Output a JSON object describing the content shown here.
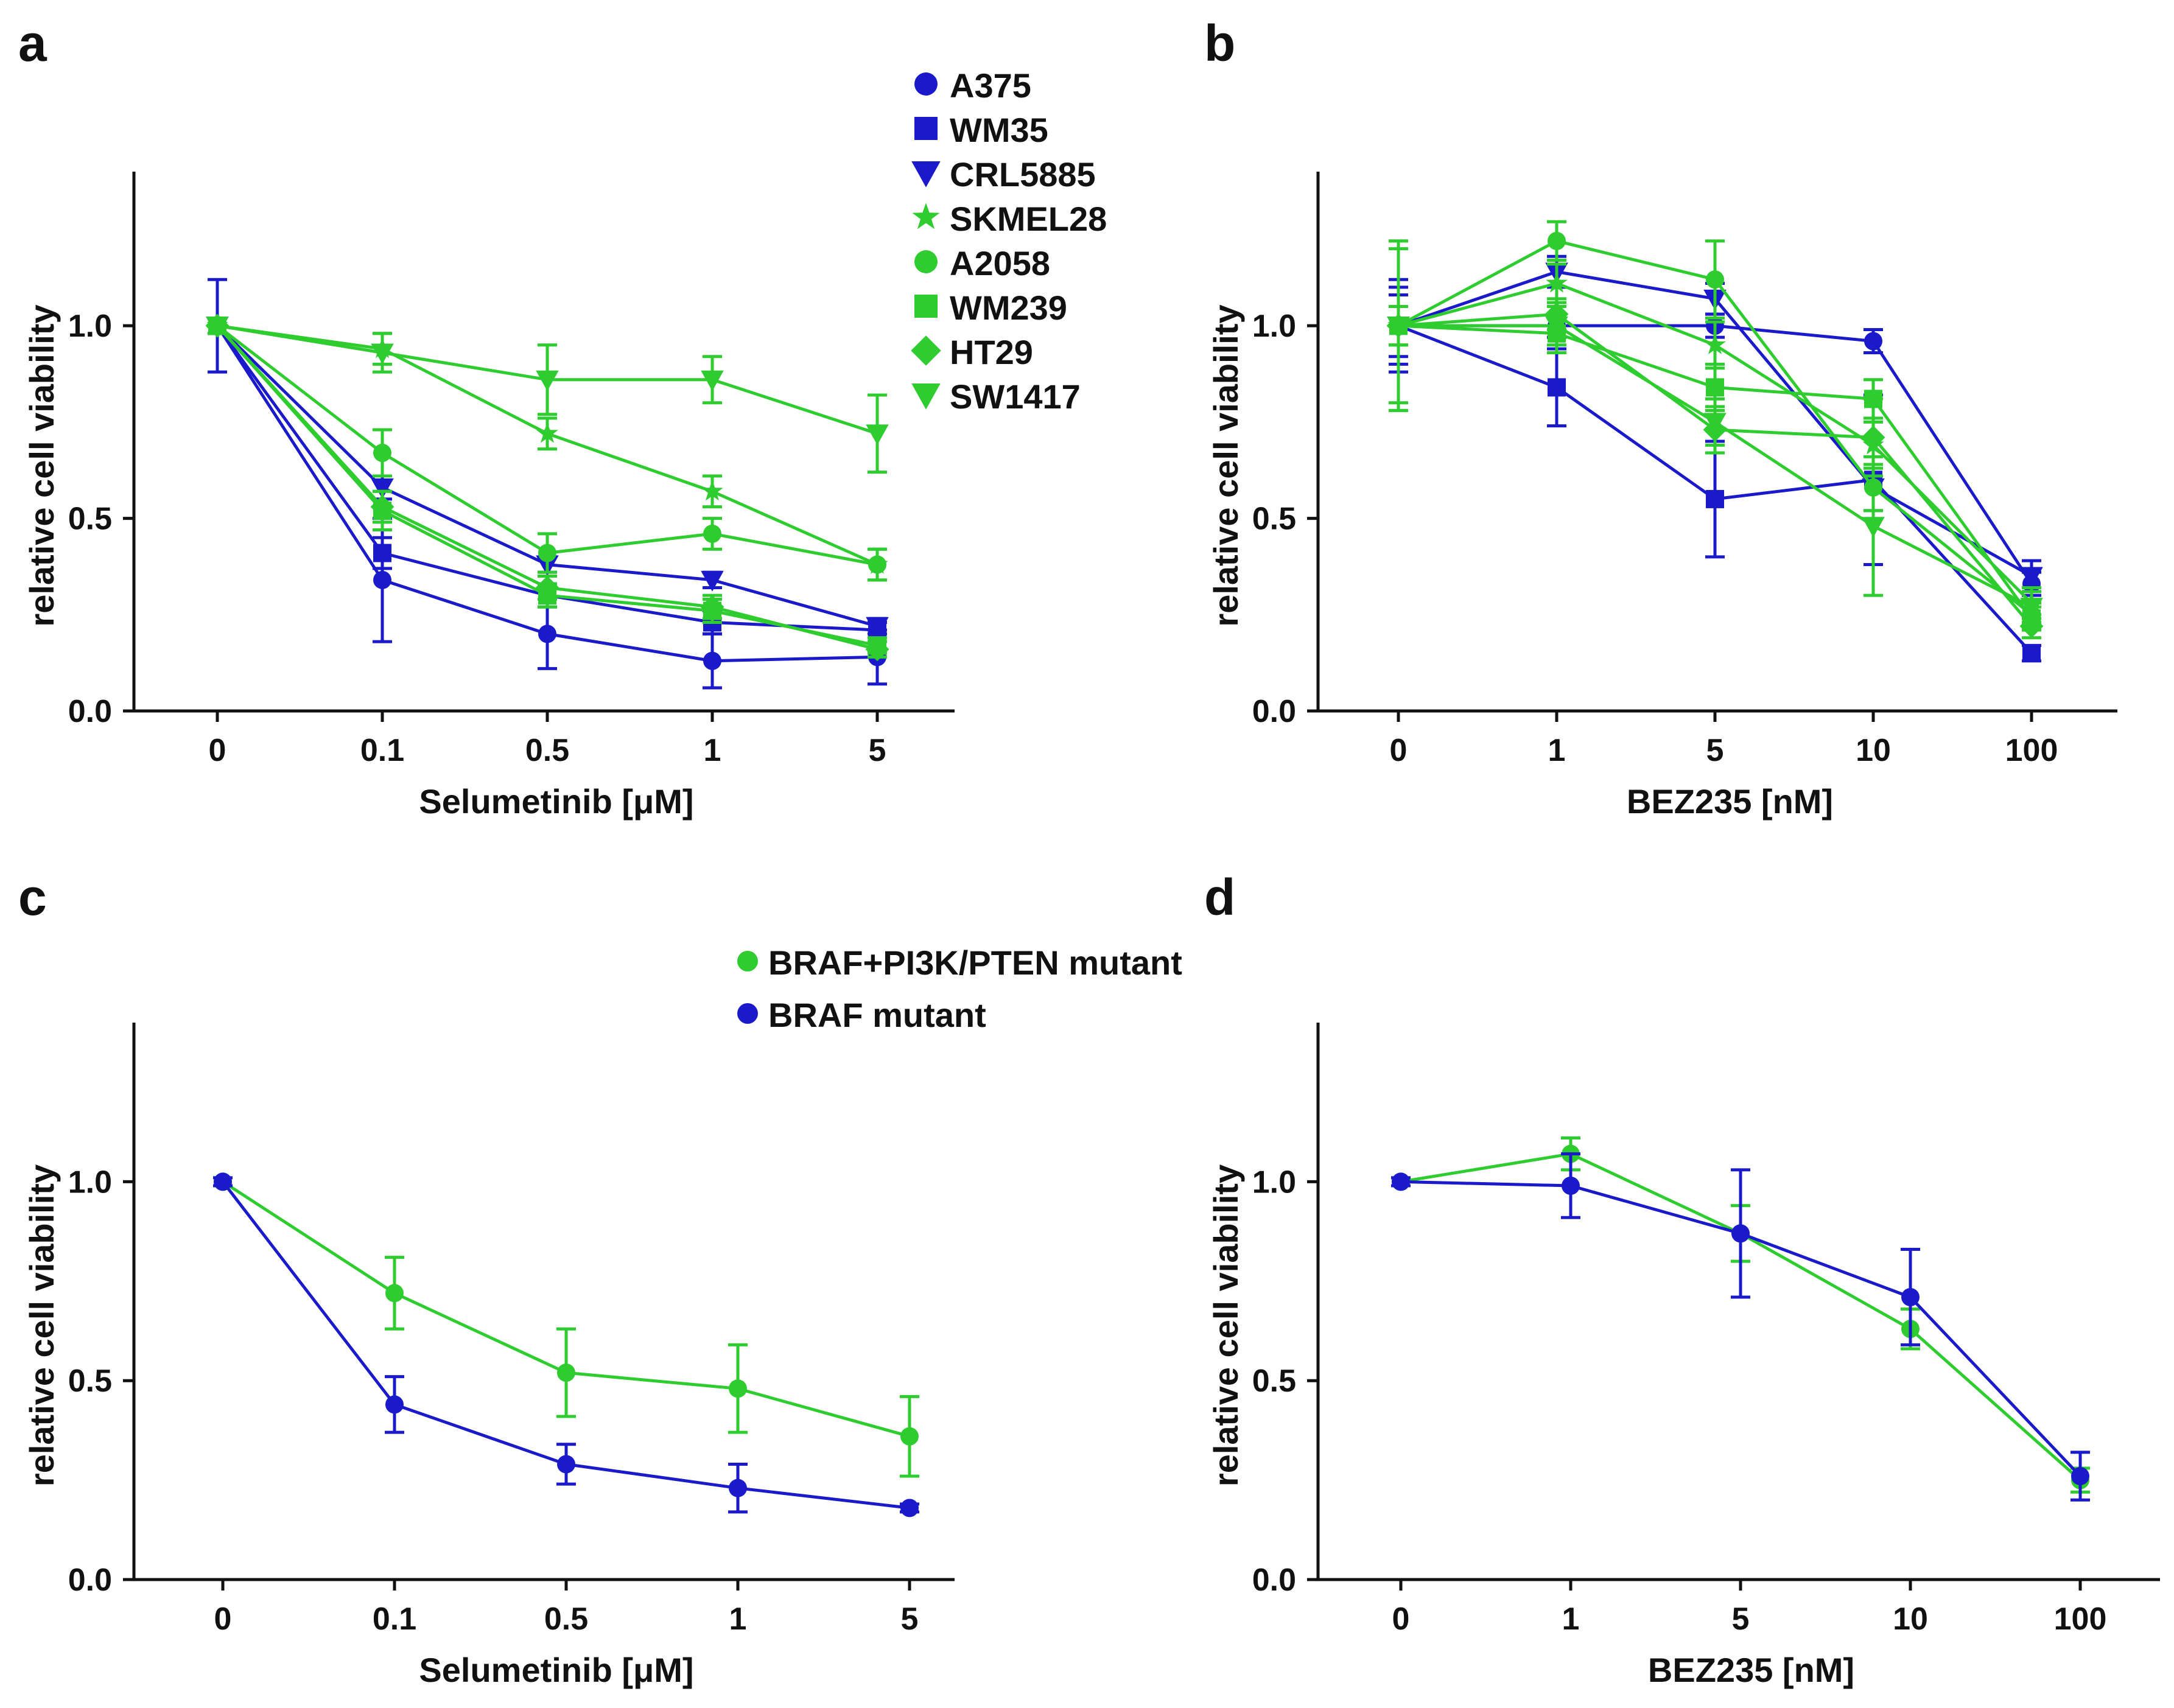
{
  "colors": {
    "blue": "#1a1aca",
    "green": "#2fcc2f"
  },
  "legend_top": [
    {
      "label": "A375",
      "marker": "circle",
      "color": "blue"
    },
    {
      "label": "WM35",
      "marker": "square",
      "color": "blue"
    },
    {
      "label": "CRL5885",
      "marker": "triangle-down",
      "color": "blue"
    },
    {
      "label": "SKMEL28",
      "marker": "star",
      "color": "green"
    },
    {
      "label": "A2058",
      "marker": "circle",
      "color": "green"
    },
    {
      "label": "WM239",
      "marker": "square",
      "color": "green"
    },
    {
      "label": "HT29",
      "marker": "diamond",
      "color": "green"
    },
    {
      "label": "SW1417",
      "marker": "triangle-down",
      "color": "green"
    }
  ],
  "legend_bottom": [
    {
      "label": "BRAF+PI3K/PTEN mutant",
      "marker": "circle",
      "color": "green"
    },
    {
      "label": "BRAF mutant",
      "marker": "circle",
      "color": "blue"
    }
  ],
  "chart_data": [
    {
      "panel": "a",
      "type": "line",
      "xlabel": "Selumetinib [μM]",
      "ylabel": "relative cell viability",
      "categories": [
        "0",
        "0.1",
        "0.5",
        "1",
        "5"
      ],
      "ylim": [
        0,
        1.4
      ],
      "yticks": [
        "0.0",
        "0.5",
        "1.0"
      ],
      "series": [
        {
          "name": "A375",
          "marker": "circle",
          "color": "blue",
          "values": [
            1.0,
            0.34,
            0.2,
            0.13,
            0.14
          ],
          "err": [
            0.12,
            0.16,
            0.09,
            0.07,
            0.07
          ]
        },
        {
          "name": "WM35",
          "marker": "square",
          "color": "blue",
          "values": [
            1.0,
            0.41,
            0.3,
            0.23,
            0.21
          ],
          "err": [
            0.02,
            0.04,
            0.03,
            0.03,
            0.02
          ]
        },
        {
          "name": "CRL5885",
          "marker": "triangle-down",
          "color": "blue",
          "values": [
            1.0,
            0.58,
            0.38,
            0.34,
            0.22
          ],
          "err": [
            0.02,
            0.03,
            0.02,
            0.02,
            0.02
          ]
        },
        {
          "name": "SKMEL28",
          "marker": "star",
          "color": "green",
          "values": [
            1.0,
            0.94,
            0.72,
            0.57,
            0.38
          ],
          "err": [
            0.02,
            0.04,
            0.04,
            0.04,
            0.04
          ]
        },
        {
          "name": "A2058",
          "marker": "circle",
          "color": "green",
          "values": [
            1.0,
            0.67,
            0.41,
            0.46,
            0.38
          ],
          "err": [
            0.02,
            0.06,
            0.05,
            0.04,
            0.04
          ]
        },
        {
          "name": "WM239",
          "marker": "square",
          "color": "green",
          "values": [
            1.0,
            0.52,
            0.3,
            0.26,
            0.17
          ],
          "err": [
            0.02,
            0.05,
            0.03,
            0.03,
            0.02
          ]
        },
        {
          "name": "HT29",
          "marker": "diamond",
          "color": "green",
          "values": [
            1.0,
            0.53,
            0.32,
            0.27,
            0.16
          ],
          "err": [
            0.02,
            0.04,
            0.03,
            0.03,
            0.02
          ]
        },
        {
          "name": "SW1417",
          "marker": "triangle-down",
          "color": "green",
          "values": [
            1.0,
            0.93,
            0.86,
            0.86,
            0.72
          ],
          "err": [
            0.02,
            0.05,
            0.09,
            0.06,
            0.1
          ]
        }
      ]
    },
    {
      "panel": "b",
      "type": "line",
      "xlabel": "BEZ235 [nM]",
      "ylabel": "relative cell viability",
      "categories": [
        "0",
        "1",
        "5",
        "10",
        "100"
      ],
      "ylim": [
        0,
        1.4
      ],
      "yticks": [
        "0.0",
        "0.5",
        "1.0"
      ],
      "series": [
        {
          "name": "A375",
          "marker": "circle",
          "color": "blue",
          "values": [
            1.0,
            1.0,
            1.0,
            0.96,
            0.33
          ],
          "err": [
            0.1,
            0.03,
            0.03,
            0.03,
            0.03
          ]
        },
        {
          "name": "WM35",
          "marker": "square",
          "color": "blue",
          "values": [
            1.0,
            0.84,
            0.55,
            0.6,
            0.15
          ],
          "err": [
            0.12,
            0.1,
            0.15,
            0.22,
            0.02
          ]
        },
        {
          "name": "CRL5885",
          "marker": "triangle-down",
          "color": "blue",
          "values": [
            1.0,
            1.14,
            1.07,
            0.58,
            0.35
          ],
          "err": [
            0.08,
            0.04,
            0.04,
            0.06,
            0.04
          ]
        },
        {
          "name": "SKMEL28",
          "marker": "star",
          "color": "green",
          "values": [
            1.0,
            1.11,
            0.95,
            0.69,
            0.28
          ],
          "err": [
            0.2,
            0.05,
            0.06,
            0.06,
            0.04
          ]
        },
        {
          "name": "A2058",
          "marker": "circle",
          "color": "green",
          "values": [
            1.0,
            1.22,
            1.12,
            0.58,
            0.25
          ],
          "err": [
            0.22,
            0.05,
            0.1,
            0.06,
            0.03
          ]
        },
        {
          "name": "WM239",
          "marker": "square",
          "color": "green",
          "values": [
            1.0,
            0.98,
            0.84,
            0.81,
            0.24
          ],
          "err": [
            0.05,
            0.05,
            0.06,
            0.05,
            0.03
          ]
        },
        {
          "name": "HT29",
          "marker": "diamond",
          "color": "green",
          "values": [
            1.0,
            1.03,
            0.73,
            0.71,
            0.22
          ],
          "err": [
            0.05,
            0.04,
            0.06,
            0.1,
            0.03
          ]
        },
        {
          "name": "SW1417",
          "marker": "triangle-down",
          "color": "green",
          "values": [
            1.0,
            1.0,
            0.75,
            0.48,
            0.27
          ],
          "err": [
            0.22,
            0.05,
            0.06,
            0.18,
            0.04
          ]
        }
      ]
    },
    {
      "panel": "c",
      "type": "line",
      "xlabel": "Selumetinib [μM]",
      "ylabel": "relative cell viability",
      "categories": [
        "0",
        "0.1",
        "0.5",
        "1",
        "5"
      ],
      "ylim": [
        0,
        1.4
      ],
      "yticks": [
        "0.0",
        "0.5",
        "1.0"
      ],
      "series": [
        {
          "name": "BRAF+PI3K/PTEN mutant",
          "marker": "circle",
          "color": "green",
          "values": [
            1.0,
            0.72,
            0.52,
            0.48,
            0.36
          ],
          "err": [
            0.01,
            0.09,
            0.11,
            0.11,
            0.1
          ]
        },
        {
          "name": "BRAF mutant",
          "marker": "circle",
          "color": "blue",
          "values": [
            1.0,
            0.44,
            0.29,
            0.23,
            0.18
          ],
          "err": [
            0.01,
            0.07,
            0.05,
            0.06,
            0.01
          ]
        }
      ]
    },
    {
      "panel": "d",
      "type": "line",
      "xlabel": "BEZ235 [nM]",
      "ylabel": "relative cell viability",
      "categories": [
        "0",
        "1",
        "5",
        "10",
        "100"
      ],
      "ylim": [
        0,
        1.4
      ],
      "yticks": [
        "0.0",
        "0.5",
        "1.0"
      ],
      "series": [
        {
          "name": "BRAF+PI3K/PTEN mutant",
          "marker": "circle",
          "color": "green",
          "values": [
            1.0,
            1.07,
            0.87,
            0.63,
            0.25
          ],
          "err": [
            0.01,
            0.04,
            0.07,
            0.05,
            0.03
          ]
        },
        {
          "name": "BRAF mutant",
          "marker": "circle",
          "color": "blue",
          "values": [
            1.0,
            0.99,
            0.87,
            0.71,
            0.26
          ],
          "err": [
            0.01,
            0.08,
            0.16,
            0.12,
            0.06
          ]
        }
      ]
    }
  ]
}
